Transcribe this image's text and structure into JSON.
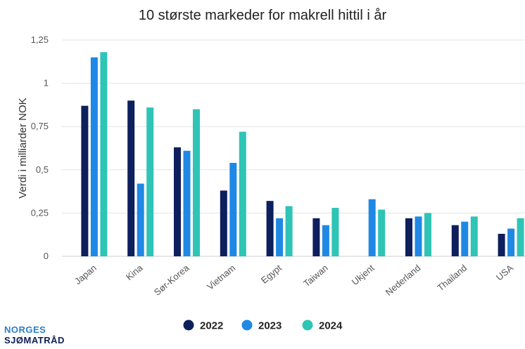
{
  "chart_data": {
    "type": "bar",
    "title": "10 største markeder for makrell hittil i år",
    "xlabel": "",
    "ylabel": "Verdi i milliarder NOK",
    "ylim": [
      0,
      1.25
    ],
    "yticks": [
      0,
      0.25,
      0.5,
      0.75,
      1,
      1.25
    ],
    "ytick_labels": [
      "0",
      "0,25",
      "0,5",
      "0,75",
      "1",
      "1,25"
    ],
    "grid": true,
    "legend_position": "bottom",
    "categories": [
      "Japan",
      "Kina",
      "Sør-Korea",
      "Vietnam",
      "Egypt",
      "Taiwan",
      "Ukjent",
      "Nederland",
      "Thailand",
      "USA"
    ],
    "series": [
      {
        "name": "2022",
        "color": "#0d1f5c",
        "values": [
          0.87,
          0.9,
          0.63,
          0.38,
          0.32,
          0.22,
          null,
          0.22,
          0.18,
          0.13
        ]
      },
      {
        "name": "2023",
        "color": "#1f88e5",
        "values": [
          1.15,
          0.42,
          0.61,
          0.54,
          0.22,
          0.18,
          0.33,
          0.23,
          0.2,
          0.16
        ]
      },
      {
        "name": "2024",
        "color": "#2ec4b6",
        "values": [
          1.18,
          0.86,
          0.85,
          0.72,
          0.29,
          0.28,
          0.27,
          0.25,
          0.23,
          0.22
        ]
      }
    ]
  },
  "brand": {
    "line1": "NORGES",
    "line2": "SJØMATRÅD"
  }
}
